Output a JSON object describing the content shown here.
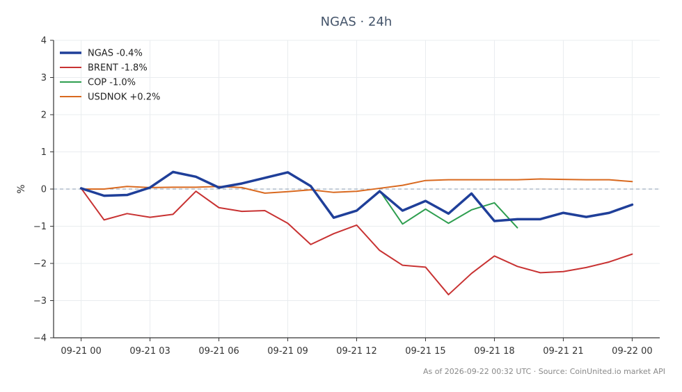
{
  "chart_data": {
    "type": "line",
    "title": "NGAS · 24h",
    "xlabel": "",
    "ylabel": "%",
    "ylim": [
      -4,
      4
    ],
    "yticks": [
      4,
      3,
      2,
      1,
      0,
      -1,
      -2,
      -3,
      -4
    ],
    "ytick_labels": [
      "4",
      "3",
      "2",
      "1",
      "0",
      "−1",
      "−2",
      "−3",
      "−4"
    ],
    "x_range": [
      -1.2,
      25.2
    ],
    "xticks": [
      {
        "x": 0,
        "label": "09-21 00"
      },
      {
        "x": 3,
        "label": "09-21 03"
      },
      {
        "x": 6,
        "label": "09-21 06"
      },
      {
        "x": 9,
        "label": "09-21 09"
      },
      {
        "x": 12,
        "label": "09-21 12"
      },
      {
        "x": 15,
        "label": "09-21 15"
      },
      {
        "x": 18,
        "label": "09-21 18"
      },
      {
        "x": 21,
        "label": "09-21 21"
      },
      {
        "x": 24,
        "label": "09-22 00"
      }
    ],
    "grid": true,
    "zero_line": true,
    "legend": "top-left",
    "series": [
      {
        "name": "NGAS -0.4%",
        "color": "#1f3f99",
        "width": 3.5,
        "x": [
          0,
          1,
          2,
          3,
          4,
          5,
          6,
          7,
          8,
          9,
          10,
          11,
          12,
          13,
          14,
          15,
          16,
          17,
          18,
          19,
          20,
          21,
          22,
          23,
          24
        ],
        "y": [
          0.02,
          -0.18,
          -0.16,
          0.04,
          0.46,
          0.33,
          0.04,
          0.15,
          0.3,
          0.45,
          0.08,
          -0.77,
          -0.58,
          -0.06,
          -0.58,
          -0.32,
          -0.66,
          -0.12,
          -0.86,
          -0.81,
          -0.81,
          -0.64,
          -0.75,
          -0.64,
          -0.42
        ]
      },
      {
        "name": "BRENT -1.8%",
        "color": "#c83232",
        "width": 2,
        "x": [
          0,
          1,
          2,
          3,
          4,
          5,
          6,
          7,
          8,
          9,
          10,
          11,
          12,
          13,
          14,
          15,
          16,
          17,
          18,
          19,
          20,
          21,
          22,
          23,
          24
        ],
        "y": [
          0.02,
          -0.83,
          -0.66,
          -0.76,
          -0.68,
          -0.06,
          -0.5,
          -0.6,
          -0.58,
          -0.92,
          -1.49,
          -1.2,
          -0.97,
          -1.65,
          -2.05,
          -2.1,
          -2.84,
          -2.27,
          -1.8,
          -2.08,
          -2.25,
          -2.22,
          -2.11,
          -1.96,
          -1.75
        ]
      },
      {
        "name": "COP -1.0%",
        "color": "#2e9e4f",
        "width": 2,
        "x": [
          13,
          14,
          15,
          16,
          17,
          18,
          19
        ],
        "y": [
          -0.04,
          -0.94,
          -0.54,
          -0.92,
          -0.56,
          -0.37,
          -1.04
        ]
      },
      {
        "name": "USDNOK +0.2%",
        "color": "#d9691f",
        "width": 2,
        "x": [
          0,
          1,
          2,
          3,
          4,
          5,
          6,
          7,
          8,
          9,
          10,
          11,
          12,
          13,
          14,
          15,
          16,
          17,
          18,
          19,
          20,
          21,
          22,
          23,
          24
        ],
        "y": [
          0.0,
          0.0,
          0.07,
          0.04,
          0.05,
          0.05,
          0.07,
          0.04,
          -0.11,
          -0.07,
          -0.02,
          -0.09,
          -0.06,
          0.02,
          0.1,
          0.23,
          0.25,
          0.25,
          0.25,
          0.25,
          0.27,
          0.26,
          0.25,
          0.25,
          0.2
        ]
      }
    ],
    "footer": "As of 2026-09-22 00:32 UTC · Source: CoinUnited.io market API"
  }
}
